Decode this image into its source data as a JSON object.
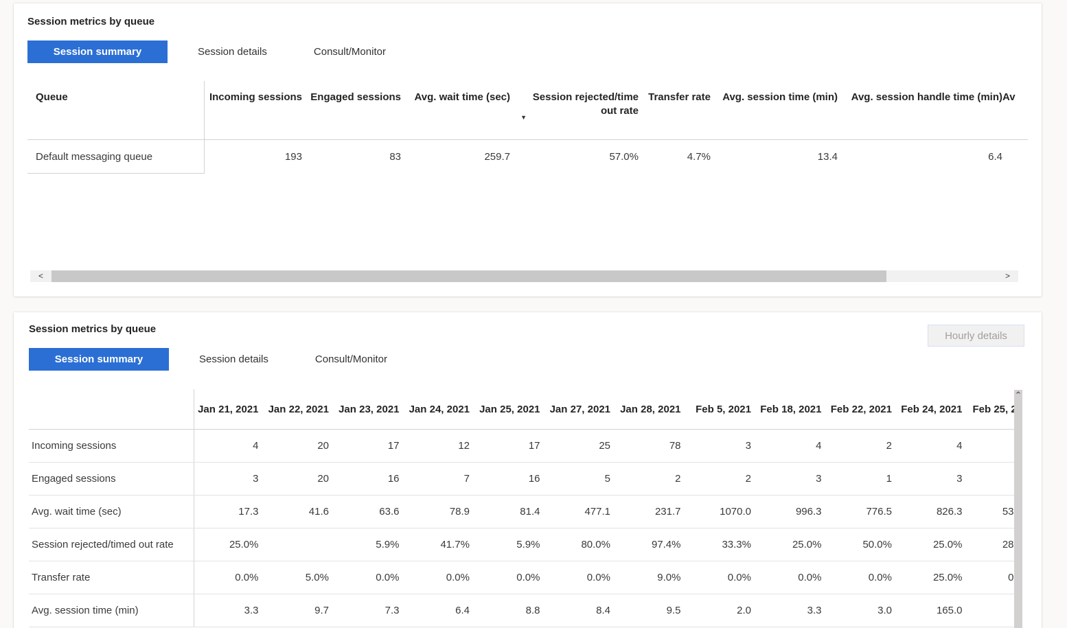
{
  "colors": {
    "accent": "#2b6fd4",
    "page_bg": "#faf9f8",
    "active_tab_text": "#ffffff"
  },
  "icons": {
    "sort_desc": "▼",
    "scroll_left": "<",
    "scroll_right": ">",
    "scroll_up": "⌃"
  },
  "panel_top": {
    "title": "Session metrics by queue",
    "tabs": [
      {
        "label": "Session summary",
        "active": true
      },
      {
        "label": "Session details",
        "active": false
      },
      {
        "label": "Consult/Monitor",
        "active": false
      }
    ],
    "table": {
      "columns": [
        "Queue",
        "Incoming sessions",
        "Engaged sessions",
        "Avg. wait time (sec)",
        "Session rejected/time out rate",
        "Transfer rate",
        "Avg. session time (min)",
        "Avg. session handle time (min)",
        "Av"
      ],
      "sorted_column": "Avg. wait time (sec)",
      "sort_direction": "descending",
      "rows": [
        {
          "queue": "Default messaging queue",
          "values": [
            "193",
            "83",
            "259.7",
            "57.0%",
            "4.7%",
            "13.4",
            "6.4",
            ""
          ]
        }
      ]
    }
  },
  "panel_bottom": {
    "title": "Session metrics by queue",
    "button": {
      "label": "Hourly details",
      "disabled": true
    },
    "tabs": [
      {
        "label": "Session summary",
        "active": true
      },
      {
        "label": "Session details",
        "active": false
      },
      {
        "label": "Consult/Monitor",
        "active": false
      }
    ],
    "table": {
      "columns": [
        "Jan 21, 2021",
        "Jan 22, 2021",
        "Jan 23, 2021",
        "Jan 24, 2021",
        "Jan 25, 2021",
        "Jan 27, 2021",
        "Jan 28, 2021",
        "Feb 5, 2021",
        "Feb 18, 2021",
        "Feb 22, 2021",
        "Feb 24, 2021",
        "Feb 25, 2"
      ],
      "rows": [
        {
          "label": "Incoming sessions",
          "values": [
            "4",
            "20",
            "17",
            "12",
            "17",
            "25",
            "78",
            "3",
            "4",
            "2",
            "4",
            ""
          ]
        },
        {
          "label": "Engaged sessions",
          "values": [
            "3",
            "20",
            "16",
            "7",
            "16",
            "5",
            "2",
            "2",
            "3",
            "1",
            "3",
            ""
          ]
        },
        {
          "label": "Avg. wait time (sec)",
          "values": [
            "17.3",
            "41.6",
            "63.6",
            "78.9",
            "81.4",
            "477.1",
            "231.7",
            "1070.0",
            "996.3",
            "776.5",
            "826.3",
            "53"
          ]
        },
        {
          "label": "Session rejected/timed out rate",
          "values": [
            "25.0%",
            "",
            "5.9%",
            "41.7%",
            "5.9%",
            "80.0%",
            "97.4%",
            "33.3%",
            "25.0%",
            "50.0%",
            "25.0%",
            "28"
          ]
        },
        {
          "label": "Transfer rate",
          "values": [
            "0.0%",
            "5.0%",
            "0.0%",
            "0.0%",
            "0.0%",
            "0.0%",
            "9.0%",
            "0.0%",
            "0.0%",
            "0.0%",
            "25.0%",
            "0"
          ]
        },
        {
          "label": "Avg. session time (min)",
          "values": [
            "3.3",
            "9.7",
            "7.3",
            "6.4",
            "8.8",
            "8.4",
            "9.5",
            "2.0",
            "3.3",
            "3.0",
            "165.0",
            ""
          ]
        }
      ]
    }
  }
}
